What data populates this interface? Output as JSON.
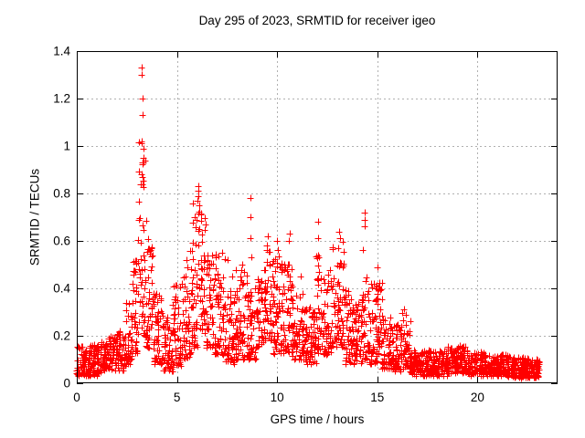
{
  "page": {
    "background": "#ffffff",
    "text_color": "#000000"
  },
  "chart_data": {
    "type": "scatter",
    "title": "Day 295 of 2023, SRMTID for receiver igeo",
    "xlabel": "GPS time / hours",
    "ylabel": "SRMTID / TECUs",
    "xlim": [
      0,
      24
    ],
    "ylim": [
      0,
      1.4
    ],
    "xticks": [
      0,
      5,
      10,
      15,
      20
    ],
    "yticks": [
      0,
      0.2,
      0.4,
      0.6,
      0.8,
      1,
      1.2,
      1.4
    ],
    "ytick_labels": [
      "0",
      "0.2",
      "0.4",
      "0.6",
      "0.8",
      "1",
      "1.2",
      "1.4"
    ],
    "grid": true,
    "grid_style": "dotted",
    "grid_color": "#b0b0b0",
    "border_color": "#000000",
    "legend": "none",
    "marker": {
      "shape": "plus",
      "color": "#ff0000",
      "size": 7
    },
    "series_name": "SRMTID",
    "seed": 295,
    "peak_points": [
      [
        3.24,
        1.33
      ],
      [
        3.25,
        1.3
      ],
      [
        3.28,
        1.2
      ],
      [
        3.27,
        1.13
      ],
      [
        3.22,
        1.02
      ],
      [
        3.26,
        1.01
      ],
      [
        3.31,
        0.99
      ],
      [
        3.34,
        0.95
      ],
      [
        3.3,
        0.93
      ],
      [
        3.24,
        0.88
      ],
      [
        3.2,
        0.84
      ],
      [
        6.05,
        0.83
      ],
      [
        6.07,
        0.81
      ],
      [
        6.09,
        0.79
      ],
      [
        6.02,
        0.77
      ],
      [
        6.12,
        0.75
      ],
      [
        7.25,
        0.55
      ],
      [
        7.55,
        0.52
      ],
      [
        7.75,
        0.45
      ],
      [
        8.25,
        0.5
      ],
      [
        8.67,
        0.78
      ],
      [
        8.68,
        0.7
      ],
      [
        8.66,
        0.61
      ],
      [
        8.7,
        0.53
      ],
      [
        9.55,
        0.62
      ],
      [
        9.5,
        0.58
      ],
      [
        10.0,
        0.6
      ],
      [
        10.05,
        0.56
      ],
      [
        10.65,
        0.63
      ],
      [
        10.6,
        0.6
      ],
      [
        11.2,
        0.45
      ],
      [
        12.03,
        0.68
      ],
      [
        12.05,
        0.61
      ],
      [
        12.1,
        0.53
      ],
      [
        13.1,
        0.64
      ],
      [
        13.12,
        0.61
      ],
      [
        13.05,
        0.57
      ],
      [
        14.37,
        0.72
      ],
      [
        14.38,
        0.69
      ],
      [
        14.36,
        0.66
      ],
      [
        14.3,
        0.56
      ],
      [
        15.0,
        0.49
      ],
      [
        16.35,
        0.31
      ],
      [
        16.42,
        0.29
      ]
    ],
    "density_segments": [
      [
        0.0,
        0.5,
        60,
        0.03,
        0.16,
        1.4
      ],
      [
        0.5,
        1.0,
        60,
        0.03,
        0.16,
        1.4
      ],
      [
        1.0,
        1.5,
        60,
        0.04,
        0.18,
        1.4
      ],
      [
        1.5,
        2.0,
        60,
        0.05,
        0.2,
        1.4
      ],
      [
        2.0,
        2.4,
        48,
        0.05,
        0.22,
        1.4
      ],
      [
        2.4,
        2.75,
        40,
        0.08,
        0.35,
        1.5
      ],
      [
        2.75,
        3.05,
        36,
        0.12,
        0.52,
        1.4
      ],
      [
        3.05,
        3.45,
        48,
        0.2,
        1.02,
        1.9
      ],
      [
        3.45,
        3.8,
        40,
        0.15,
        0.62,
        1.6
      ],
      [
        3.8,
        4.3,
        55,
        0.08,
        0.38,
        1.5
      ],
      [
        4.3,
        4.8,
        55,
        0.05,
        0.28,
        1.4
      ],
      [
        4.8,
        5.3,
        55,
        0.07,
        0.42,
        1.6
      ],
      [
        5.3,
        5.75,
        50,
        0.1,
        0.56,
        1.6
      ],
      [
        5.75,
        6.15,
        42,
        0.15,
        0.78,
        1.6
      ],
      [
        6.15,
        6.45,
        36,
        0.2,
        0.72,
        1.5
      ],
      [
        6.45,
        6.9,
        50,
        0.15,
        0.55,
        1.5
      ],
      [
        6.9,
        7.45,
        58,
        0.12,
        0.55,
        1.5
      ],
      [
        7.45,
        7.95,
        55,
        0.08,
        0.42,
        1.5
      ],
      [
        7.95,
        8.5,
        60,
        0.1,
        0.48,
        1.5
      ],
      [
        8.5,
        8.95,
        48,
        0.1,
        0.4,
        1.4
      ],
      [
        8.95,
        9.35,
        45,
        0.15,
        0.48,
        1.4
      ],
      [
        9.35,
        9.75,
        45,
        0.18,
        0.6,
        1.5
      ],
      [
        9.75,
        10.2,
        50,
        0.12,
        0.55,
        1.5
      ],
      [
        10.2,
        10.75,
        60,
        0.12,
        0.52,
        1.6
      ],
      [
        10.75,
        11.4,
        70,
        0.1,
        0.38,
        1.5
      ],
      [
        11.4,
        11.95,
        60,
        0.08,
        0.32,
        1.4
      ],
      [
        11.95,
        12.25,
        34,
        0.12,
        0.55,
        1.5
      ],
      [
        12.25,
        12.75,
        55,
        0.12,
        0.48,
        1.5
      ],
      [
        12.75,
        13.35,
        65,
        0.15,
        0.6,
        1.6
      ],
      [
        13.35,
        13.85,
        55,
        0.08,
        0.4,
        1.5
      ],
      [
        13.85,
        14.25,
        45,
        0.08,
        0.35,
        1.4
      ],
      [
        14.25,
        14.55,
        32,
        0.1,
        0.45,
        1.4
      ],
      [
        14.55,
        15.25,
        75,
        0.08,
        0.44,
        1.6
      ],
      [
        15.25,
        15.85,
        65,
        0.06,
        0.28,
        1.4
      ],
      [
        15.85,
        16.25,
        45,
        0.05,
        0.26,
        1.3
      ],
      [
        16.25,
        16.65,
        45,
        0.06,
        0.3,
        1.3
      ],
      [
        16.65,
        17.25,
        70,
        0.03,
        0.14,
        1.2
      ],
      [
        17.25,
        18.5,
        150,
        0.03,
        0.14,
        1.2
      ],
      [
        18.5,
        19.5,
        120,
        0.04,
        0.16,
        1.3
      ],
      [
        19.5,
        20.5,
        120,
        0.03,
        0.13,
        1.2
      ],
      [
        20.5,
        21.5,
        120,
        0.03,
        0.12,
        1.2
      ],
      [
        21.5,
        22.5,
        120,
        0.02,
        0.11,
        1.2
      ],
      [
        22.5,
        23.1,
        75,
        0.02,
        0.1,
        1.2
      ]
    ]
  }
}
